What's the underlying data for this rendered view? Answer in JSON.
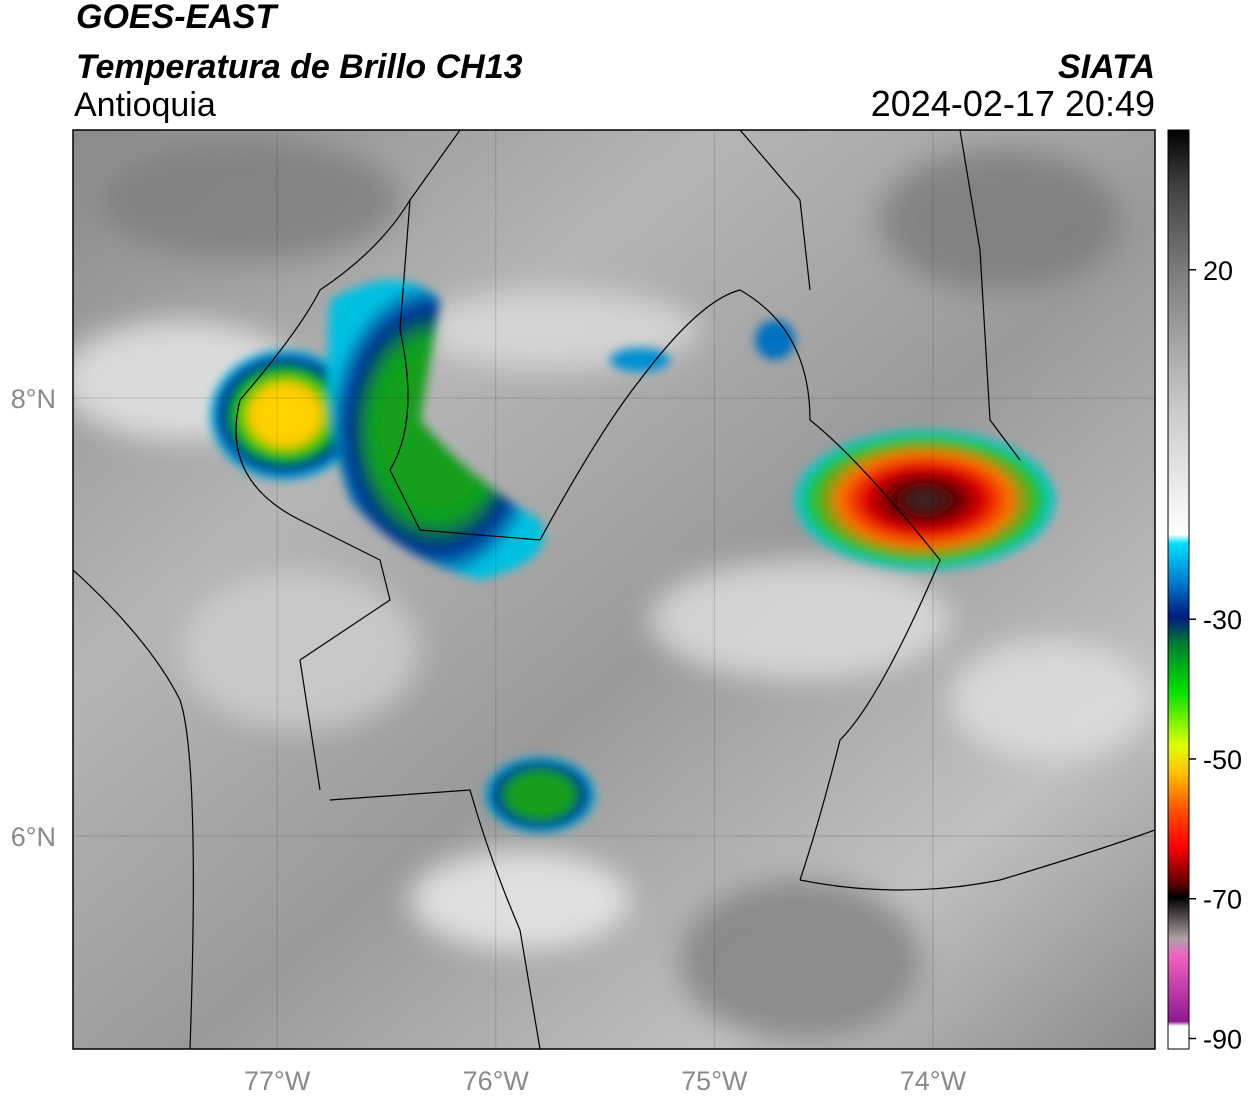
{
  "header": {
    "title": "GOES-EAST",
    "subtitle": "Temperatura de Brillo CH13",
    "region": "Antioquia",
    "source": "SIATA",
    "datetime": "2024-02-17 20:49"
  },
  "map": {
    "lonlim": [
      -77.934,
      -72.984
    ],
    "latlim": [
      5.027,
      9.224
    ],
    "lon_ticks": [
      {
        "value": -77,
        "label": "77°W"
      },
      {
        "value": -76,
        "label": "76°W"
      },
      {
        "value": -75,
        "label": "75°W"
      },
      {
        "value": -74,
        "label": "74°W"
      }
    ],
    "lat_ticks": [
      {
        "value": 8,
        "label": "8°N"
      },
      {
        "value": 6,
        "label": "6°N"
      }
    ]
  },
  "colorbar": {
    "lim": [
      -91.5,
      40
    ],
    "ticks": [
      20,
      -30,
      -50,
      -70,
      -90
    ]
  }
}
